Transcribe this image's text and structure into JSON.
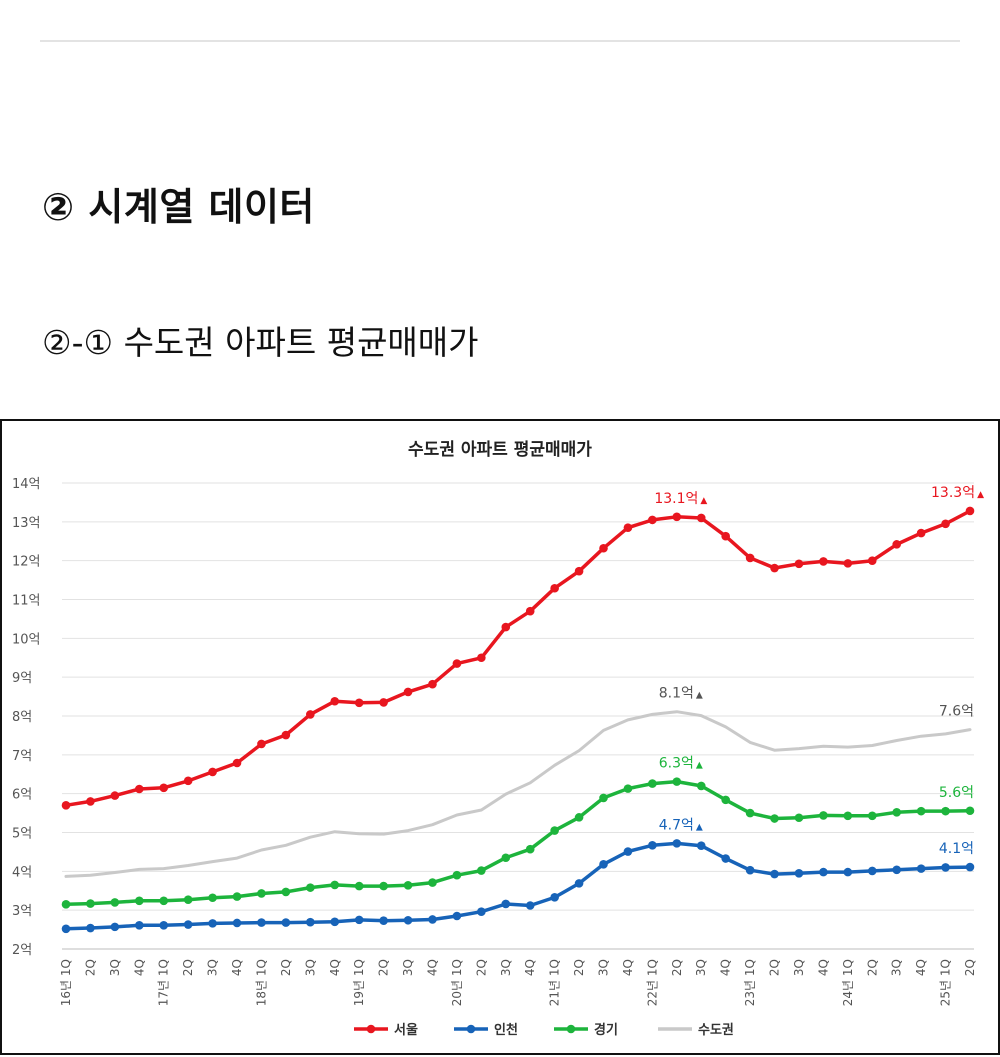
{
  "page": {
    "section_title": "② 시계열 데이터",
    "subsection_title": "②-① 수도권 아파트 평균매매가"
  },
  "colors": {
    "seoul": "#e8161f",
    "incheon": "#1763b8",
    "gyeonggi": "#1db43c",
    "metro": "#c9c9c9",
    "grid": "#e2e2e2",
    "axis_text": "#555555"
  },
  "chart_data": {
    "type": "line",
    "title": "수도권 아파트 평균매매가",
    "xlabel": "",
    "ylabel": "",
    "ylim": [
      2,
      14
    ],
    "y_ticks": [
      2,
      3,
      4,
      5,
      6,
      7,
      8,
      9,
      10,
      11,
      12,
      13,
      14
    ],
    "y_tick_labels": [
      "2억",
      "3억",
      "4억",
      "5억",
      "6억",
      "7억",
      "8억",
      "9억",
      "10억",
      "11억",
      "12억",
      "13억",
      "14억"
    ],
    "categories": [
      "16년 1Q",
      "2Q",
      "3Q",
      "4Q",
      "17년 1Q",
      "2Q",
      "3Q",
      "4Q",
      "18년 1Q",
      "2Q",
      "3Q",
      "4Q",
      "19년 1Q",
      "2Q",
      "3Q",
      "4Q",
      "20년 1Q",
      "2Q",
      "3Q",
      "4Q",
      "21년 1Q",
      "2Q",
      "3Q",
      "4Q",
      "22년 1Q",
      "2Q",
      "3Q",
      "4Q",
      "23년 1Q",
      "2Q",
      "3Q",
      "4Q",
      "24년 1Q",
      "2Q",
      "3Q",
      "4Q",
      "25년 1Q",
      "2Q"
    ],
    "legend_position": "bottom",
    "series": [
      {
        "name": "서울",
        "key": "seoul",
        "markers": true,
        "values": [
          5.7,
          5.8,
          5.95,
          6.12,
          6.15,
          6.33,
          6.56,
          6.79,
          7.28,
          7.51,
          8.04,
          8.38,
          8.34,
          8.35,
          8.62,
          8.82,
          9.35,
          9.5,
          10.29,
          10.7,
          11.29,
          11.73,
          12.32,
          12.85,
          13.05,
          13.13,
          13.1,
          12.63,
          12.07,
          11.81,
          11.92,
          11.98,
          11.93,
          12.0,
          12.42,
          12.71,
          12.95,
          13.28
        ]
      },
      {
        "name": "인천",
        "key": "incheon",
        "markers": true,
        "values": [
          2.52,
          2.54,
          2.57,
          2.61,
          2.61,
          2.63,
          2.66,
          2.67,
          2.68,
          2.68,
          2.69,
          2.7,
          2.75,
          2.73,
          2.74,
          2.76,
          2.85,
          2.96,
          3.16,
          3.12,
          3.33,
          3.69,
          4.18,
          4.51,
          4.67,
          4.72,
          4.66,
          4.33,
          4.03,
          3.93,
          3.95,
          3.98,
          3.98,
          4.01,
          4.04,
          4.07,
          4.1,
          4.11
        ]
      },
      {
        "name": "경기",
        "key": "gyeonggi",
        "markers": true,
        "values": [
          3.15,
          3.17,
          3.2,
          3.24,
          3.24,
          3.27,
          3.32,
          3.35,
          3.43,
          3.47,
          3.58,
          3.65,
          3.62,
          3.62,
          3.64,
          3.71,
          3.9,
          4.02,
          4.35,
          4.57,
          5.05,
          5.39,
          5.89,
          6.13,
          6.26,
          6.31,
          6.2,
          5.84,
          5.5,
          5.36,
          5.38,
          5.44,
          5.43,
          5.43,
          5.52,
          5.55,
          5.55,
          5.56
        ]
      },
      {
        "name": "수도권",
        "key": "metro",
        "markers": false,
        "values": [
          3.87,
          3.9,
          3.97,
          4.05,
          4.07,
          4.15,
          4.25,
          4.34,
          4.55,
          4.67,
          4.88,
          5.02,
          4.97,
          4.96,
          5.05,
          5.2,
          5.45,
          5.58,
          5.99,
          6.28,
          6.73,
          7.11,
          7.63,
          7.9,
          8.04,
          8.11,
          8.01,
          7.72,
          7.32,
          7.12,
          7.16,
          7.22,
          7.2,
          7.24,
          7.37,
          7.48,
          7.54,
          7.65
        ]
      }
    ],
    "annotations": [
      {
        "series": "seoul",
        "index": 25,
        "text": "13.1억",
        "marker": "▲"
      },
      {
        "series": "seoul",
        "index": 37,
        "text": "13.3억",
        "marker": "▲"
      },
      {
        "series": "metro",
        "index": 25,
        "text": "8.1억",
        "marker": "▲"
      },
      {
        "series": "metro",
        "index": 37,
        "text": "7.6억",
        "marker": ""
      },
      {
        "series": "gyeonggi",
        "index": 25,
        "text": "6.3억",
        "marker": "▲"
      },
      {
        "series": "gyeonggi",
        "index": 37,
        "text": "5.6억",
        "marker": ""
      },
      {
        "series": "incheon",
        "index": 25,
        "text": "4.7억",
        "marker": "▲"
      },
      {
        "series": "incheon",
        "index": 37,
        "text": "4.1억",
        "marker": ""
      }
    ]
  }
}
